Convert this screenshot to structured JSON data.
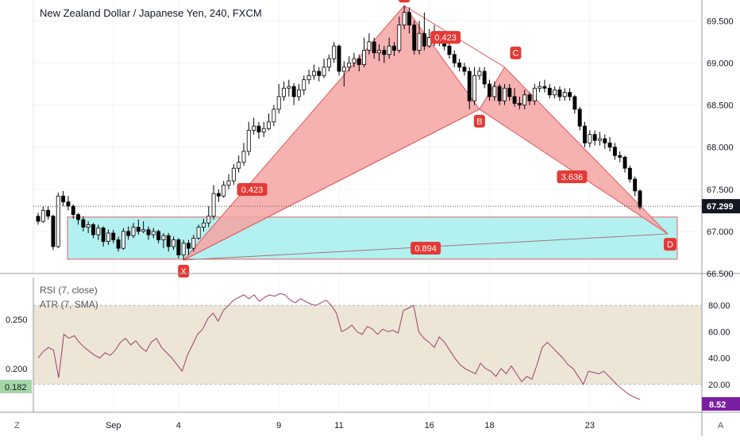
{
  "header": {
    "title": "New Zealand Dollar / Japanese Yen, 240, FXCM"
  },
  "colors": {
    "up": "#ffffff",
    "down": "#000000",
    "pattern_fill": "#f4a3a3",
    "pattern_line": "#e05a5a",
    "zone_fill": "#b3f0f0",
    "label_bg": "#e53935",
    "rsi_line": "#9c3d6a",
    "rsi_band": "#ede6d6",
    "atr_badge": "#7b1fa2",
    "rsi_badge": "#a5d6a7"
  },
  "chart_data": [
    {
      "type": "candlestick",
      "ylim": [
        66.5,
        69.7
      ],
      "y_ticks": [
        "69.500",
        "69.000",
        "68.500",
        "68.000",
        "67.500",
        "67.000",
        "66.500"
      ],
      "last_price": "67.299",
      "x_ticks": [
        "Sep",
        "4",
        "9",
        "11",
        "16",
        "18",
        "23"
      ],
      "candles": [
        [
          67.18,
          67.12,
          67.22,
          67.08
        ],
        [
          67.12,
          67.25,
          67.3,
          67.1
        ],
        [
          67.25,
          67.18,
          67.3,
          67.14
        ],
        [
          67.18,
          66.82,
          67.2,
          66.78
        ],
        [
          66.82,
          67.42,
          67.46,
          66.8
        ],
        [
          67.42,
          67.35,
          67.48,
          67.3
        ],
        [
          67.35,
          67.3,
          67.42,
          67.25
        ],
        [
          67.3,
          67.2,
          67.32,
          67.15
        ],
        [
          67.2,
          67.14,
          67.22,
          67.08
        ],
        [
          67.14,
          67.05,
          67.18,
          67.0
        ],
        [
          67.05,
          67.08,
          67.12,
          66.98
        ],
        [
          67.08,
          66.96,
          67.1,
          66.92
        ],
        [
          66.96,
          67.04,
          67.08,
          66.9
        ],
        [
          67.04,
          66.88,
          67.06,
          66.82
        ],
        [
          66.88,
          66.98,
          67.02,
          66.84
        ],
        [
          66.98,
          66.9,
          67.02,
          66.86
        ],
        [
          66.9,
          66.8,
          66.94,
          66.76
        ],
        [
          66.8,
          67.0,
          67.04,
          66.78
        ],
        [
          67.0,
          66.95,
          67.06,
          66.9
        ],
        [
          66.95,
          67.05,
          67.1,
          66.92
        ],
        [
          67.05,
          67.0,
          67.14,
          66.96
        ],
        [
          67.0,
          67.02,
          67.12,
          66.98
        ],
        [
          67.02,
          66.96,
          67.06,
          66.9
        ],
        [
          66.96,
          67.0,
          67.04,
          66.92
        ],
        [
          67.0,
          66.9,
          67.02,
          66.86
        ],
        [
          66.9,
          66.95,
          66.98,
          66.8
        ],
        [
          66.95,
          66.82,
          66.98,
          66.76
        ],
        [
          66.82,
          66.9,
          66.94,
          66.78
        ],
        [
          66.9,
          66.72,
          66.92,
          66.68
        ],
        [
          66.72,
          66.86,
          66.9,
          66.66
        ],
        [
          66.86,
          66.8,
          66.9,
          66.72
        ],
        [
          66.8,
          66.92,
          66.96,
          66.76
        ],
        [
          66.92,
          67.05,
          67.08,
          66.9
        ],
        [
          67.05,
          67.1,
          67.15,
          67.0
        ],
        [
          67.1,
          67.18,
          67.3,
          67.05
        ],
        [
          67.18,
          67.45,
          67.55,
          67.14
        ],
        [
          67.45,
          67.42,
          67.5,
          67.35
        ],
        [
          67.42,
          67.55,
          67.6,
          67.4
        ],
        [
          67.55,
          67.6,
          67.68,
          67.5
        ],
        [
          67.6,
          67.75,
          67.8,
          67.55
        ],
        [
          67.75,
          67.82,
          67.9,
          67.7
        ],
        [
          67.82,
          67.95,
          68.05,
          67.78
        ],
        [
          67.95,
          68.2,
          68.3,
          67.9
        ],
        [
          68.2,
          68.25,
          68.35,
          68.15
        ],
        [
          68.25,
          68.18,
          68.3,
          68.1
        ],
        [
          68.18,
          68.22,
          68.3,
          68.12
        ],
        [
          68.22,
          68.3,
          68.4,
          68.2
        ],
        [
          68.3,
          68.45,
          68.5,
          68.25
        ],
        [
          68.45,
          68.6,
          68.75,
          68.4
        ],
        [
          68.6,
          68.7,
          68.78,
          68.55
        ],
        [
          68.7,
          68.72,
          68.8,
          68.6
        ],
        [
          68.72,
          68.6,
          68.76,
          68.5
        ],
        [
          68.6,
          68.68,
          68.75,
          68.55
        ],
        [
          68.68,
          68.8,
          68.85,
          68.62
        ],
        [
          68.8,
          68.85,
          68.92,
          68.75
        ],
        [
          68.85,
          68.9,
          68.98,
          68.8
        ],
        [
          68.9,
          68.85,
          68.95,
          68.78
        ],
        [
          68.85,
          68.95,
          69.05,
          68.82
        ],
        [
          68.95,
          69.05,
          69.1,
          68.9
        ],
        [
          69.05,
          69.2,
          69.25,
          69.0
        ],
        [
          69.2,
          68.9,
          69.22,
          68.85
        ],
        [
          68.9,
          68.95,
          69.02,
          68.72
        ],
        [
          68.95,
          69.0,
          69.08,
          68.9
        ],
        [
          69.0,
          69.05,
          69.12,
          68.95
        ],
        [
          69.05,
          68.98,
          69.1,
          68.9
        ],
        [
          68.98,
          69.15,
          69.3,
          68.95
        ],
        [
          69.15,
          69.25,
          69.35,
          69.1
        ],
        [
          69.25,
          69.12,
          69.3,
          69.05
        ],
        [
          69.12,
          69.15,
          69.22,
          69.02
        ],
        [
          69.15,
          69.1,
          69.2,
          69.0
        ],
        [
          69.1,
          69.2,
          69.3,
          69.05
        ],
        [
          69.2,
          69.15,
          69.25,
          69.08
        ],
        [
          69.15,
          69.45,
          69.55,
          69.12
        ],
        [
          69.45,
          69.6,
          69.68,
          69.4
        ],
        [
          69.6,
          69.45,
          69.66,
          69.35
        ],
        [
          69.45,
          69.15,
          69.5,
          69.1
        ],
        [
          69.15,
          69.35,
          69.5,
          69.1
        ],
        [
          69.35,
          69.2,
          69.6,
          69.15
        ],
        [
          69.2,
          69.3,
          69.4,
          69.18
        ],
        [
          69.3,
          69.25,
          69.45,
          69.2
        ],
        [
          69.25,
          69.3,
          69.38,
          69.2
        ],
        [
          69.3,
          69.2,
          69.35,
          69.15
        ],
        [
          69.2,
          69.1,
          69.25,
          69.05
        ],
        [
          69.1,
          69.0,
          69.15,
          68.95
        ],
        [
          69.0,
          68.95,
          69.05,
          68.9
        ],
        [
          68.95,
          68.9,
          69.0,
          68.85
        ],
        [
          68.9,
          68.55,
          68.95,
          68.45
        ],
        [
          68.55,
          68.85,
          68.95,
          68.5
        ],
        [
          68.85,
          68.9,
          68.95,
          68.8
        ],
        [
          68.9,
          68.75,
          68.95,
          68.7
        ],
        [
          68.75,
          68.6,
          68.8,
          68.55
        ],
        [
          68.6,
          68.72,
          68.78,
          68.55
        ],
        [
          68.72,
          68.55,
          68.75,
          68.5
        ],
        [
          68.55,
          68.7,
          68.75,
          68.5
        ],
        [
          68.7,
          68.6,
          68.75,
          68.55
        ],
        [
          68.6,
          68.52,
          68.7,
          68.48
        ],
        [
          68.52,
          68.5,
          68.6,
          68.45
        ],
        [
          68.5,
          68.62,
          68.68,
          68.45
        ],
        [
          68.62,
          68.55,
          68.65,
          68.5
        ],
        [
          68.55,
          68.7,
          68.75,
          68.5
        ],
        [
          68.7,
          68.72,
          68.78,
          68.65
        ],
        [
          68.72,
          68.7,
          68.8,
          68.65
        ],
        [
          68.7,
          68.62,
          68.75,
          68.58
        ],
        [
          68.62,
          68.68,
          68.72,
          68.58
        ],
        [
          68.68,
          68.6,
          68.72,
          68.55
        ],
        [
          68.6,
          68.65,
          68.7,
          68.55
        ],
        [
          68.65,
          68.6,
          68.7,
          68.55
        ],
        [
          68.6,
          68.45,
          68.62,
          68.4
        ],
        [
          68.45,
          68.25,
          68.48,
          68.2
        ],
        [
          68.25,
          68.05,
          68.3,
          68.0
        ],
        [
          68.05,
          68.15,
          68.2,
          68.0
        ],
        [
          68.15,
          68.08,
          68.2,
          68.02
        ],
        [
          68.08,
          68.1,
          68.18,
          68.02
        ],
        [
          68.1,
          68.05,
          68.15,
          67.98
        ],
        [
          68.05,
          68.0,
          68.12,
          67.95
        ],
        [
          68.0,
          67.9,
          68.05,
          67.85
        ],
        [
          67.9,
          67.88,
          67.95,
          67.82
        ],
        [
          67.88,
          67.75,
          67.9,
          67.7
        ],
        [
          67.75,
          67.62,
          67.78,
          67.58
        ],
        [
          67.62,
          67.48,
          67.65,
          67.42
        ],
        [
          67.48,
          67.29,
          67.5,
          67.26
        ]
      ]
    },
    {
      "type": "line",
      "ylim": [
        0,
        100
      ],
      "y_ticks": [
        "80.00",
        "60.00",
        "40.00",
        "20.00"
      ],
      "left_ticks": [
        "0.250",
        "0.200"
      ],
      "legend": [
        "RSI (7, close)",
        "ATR (7, SMA)"
      ],
      "last_value": "8.52",
      "atr_value": "0.182",
      "band": [
        20,
        80
      ],
      "series": [
        {
          "values": [
            40,
            45,
            48,
            46,
            25,
            58,
            55,
            57,
            52,
            48,
            45,
            42,
            40,
            44,
            42,
            46,
            52,
            55,
            50,
            53,
            48,
            45,
            52,
            55,
            48,
            44,
            40,
            35,
            30,
            42,
            50,
            58,
            62,
            70,
            74,
            68,
            76,
            80,
            84,
            86,
            88,
            85,
            88,
            83,
            86,
            88,
            87,
            89,
            88,
            84,
            82,
            85,
            83,
            81,
            80,
            82,
            84,
            80,
            74,
            60,
            62,
            65,
            60,
            58,
            64,
            62,
            58,
            62,
            60,
            61,
            59,
            76,
            78,
            80,
            60,
            55,
            52,
            48,
            56,
            52,
            46,
            40,
            35,
            32,
            30,
            28,
            36,
            32,
            30,
            26,
            32,
            28,
            34,
            28,
            22,
            26,
            24,
            35,
            48,
            52,
            48,
            44,
            40,
            35,
            32,
            26,
            20,
            30,
            29,
            28,
            30,
            26,
            22,
            18,
            15,
            12,
            10,
            8.52
          ]
        }
      ]
    }
  ],
  "pattern": {
    "points": [
      {
        "label": "X",
        "value": 66.66
      },
      {
        "label": "A",
        "value": 69.68
      },
      {
        "label": "B",
        "value": 68.45
      },
      {
        "label": "C",
        "value": 68.95
      },
      {
        "label": "D",
        "value": 66.97
      }
    ],
    "ratios": [
      "0.423",
      "0.423",
      "3.636",
      "0.894"
    ],
    "zone": [
      66.67,
      67.17
    ]
  },
  "bottom_axis": {
    "z_label": "Z",
    "a_label": "A"
  }
}
